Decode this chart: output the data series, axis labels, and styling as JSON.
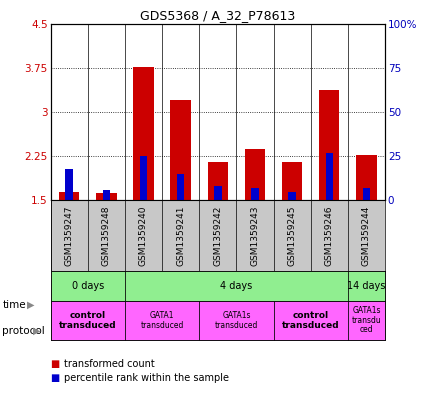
{
  "title": "GDS5368 / A_32_P78613",
  "samples": [
    "GSM1359247",
    "GSM1359248",
    "GSM1359240",
    "GSM1359241",
    "GSM1359242",
    "GSM1359243",
    "GSM1359245",
    "GSM1359246",
    "GSM1359244"
  ],
  "red_values": [
    1.65,
    1.63,
    3.77,
    3.2,
    2.15,
    2.37,
    2.15,
    3.37,
    2.27
  ],
  "blue_values": [
    18,
    6,
    25,
    15,
    8,
    7,
    5,
    27,
    7
  ],
  "red_base": 1.5,
  "ylim_left": [
    1.5,
    4.5
  ],
  "ylim_right": [
    0,
    100
  ],
  "yticks_left": [
    1.5,
    2.25,
    3.0,
    3.75,
    4.5
  ],
  "yticks_right": [
    0,
    25,
    50,
    75,
    100
  ],
  "ytick_labels_left": [
    "1.5",
    "2.25",
    "3",
    "3.75",
    "4.5"
  ],
  "ytick_labels_right": [
    "0",
    "25",
    "50",
    "75",
    "100%"
  ],
  "red_color": "#CC0000",
  "blue_color": "#0000CC",
  "bar_width": 0.55,
  "blue_bar_width": 0.2,
  "bg_color": "#FFFFFF",
  "axis_label_color_left": "#CC0000",
  "axis_label_color_right": "#0000BB"
}
